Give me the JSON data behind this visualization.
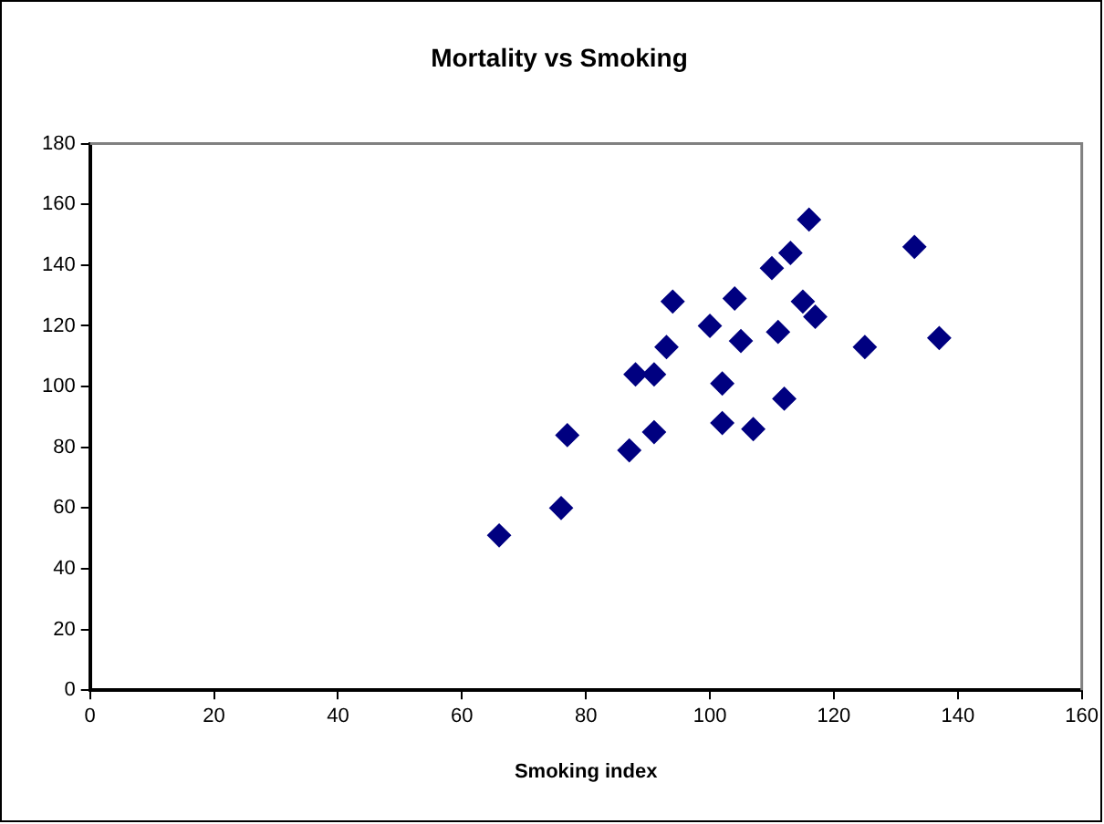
{
  "chart_data": {
    "type": "scatter",
    "title": "Mortality vs Smoking",
    "xlabel": "Smoking index",
    "series": [
      {
        "color": "#000080",
        "x": [
          77,
          137,
          117,
          94,
          116,
          102,
          111,
          93,
          88,
          102,
          91,
          104,
          107,
          112,
          113,
          110,
          125,
          133,
          115,
          105,
          87,
          91,
          100,
          76,
          66
        ],
        "values": [
          84,
          116,
          123,
          128,
          155,
          101,
          118,
          113,
          104,
          88,
          104,
          129,
          86,
          96,
          144,
          139,
          113,
          146,
          128,
          115,
          79,
          85,
          120,
          60,
          51
        ]
      }
    ],
    "xlim": [
      0,
      160
    ],
    "xticks": [
      0,
      20,
      40,
      60,
      80,
      100,
      120,
      140,
      160
    ],
    "ylim": [
      0,
      180
    ],
    "yticks": [
      0,
      20,
      40,
      60,
      80,
      100,
      120,
      140,
      160,
      180
    ],
    "grid": false,
    "legend": false,
    "marker": "diamond"
  }
}
